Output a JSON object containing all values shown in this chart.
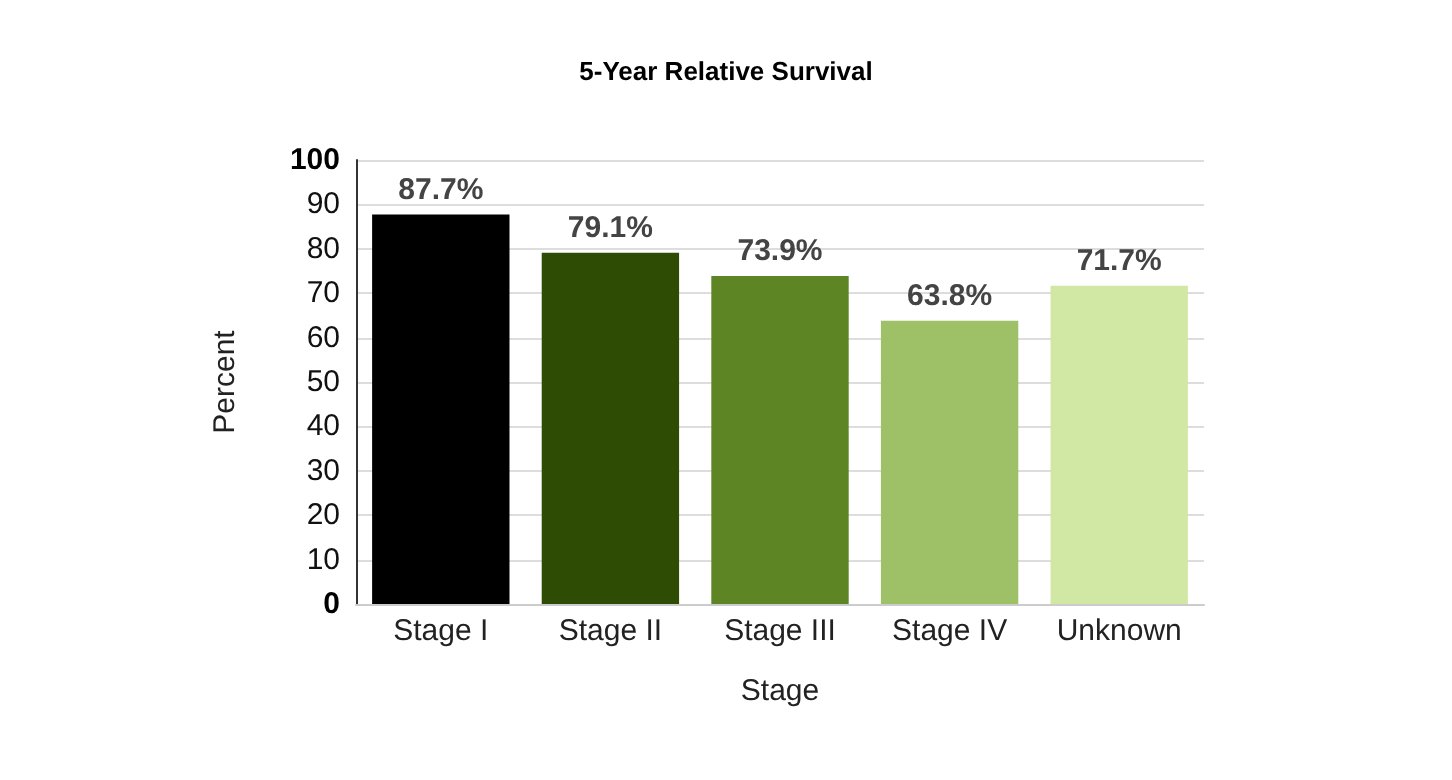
{
  "chart_data": {
    "type": "bar",
    "title": "5-Year Relative Survival",
    "xlabel": "Stage",
    "ylabel": "Percent",
    "categories": [
      "Stage I",
      "Stage II",
      "Stage III",
      "Stage IV",
      "Unknown"
    ],
    "values": [
      87.7,
      79.1,
      73.9,
      63.8,
      71.7
    ],
    "colors": [
      "#000000",
      "#2f4c04",
      "#5e8523",
      "#9ec066",
      "#d0e8a4"
    ],
    "value_labels": [
      "87.7%",
      "79.1%",
      "73.9%",
      "63.8%",
      "71.7%"
    ],
    "ylim": [
      0,
      100
    ],
    "yticks": [
      0,
      10,
      20,
      30,
      40,
      50,
      60,
      70,
      80,
      90,
      100
    ],
    "grid": "y"
  }
}
